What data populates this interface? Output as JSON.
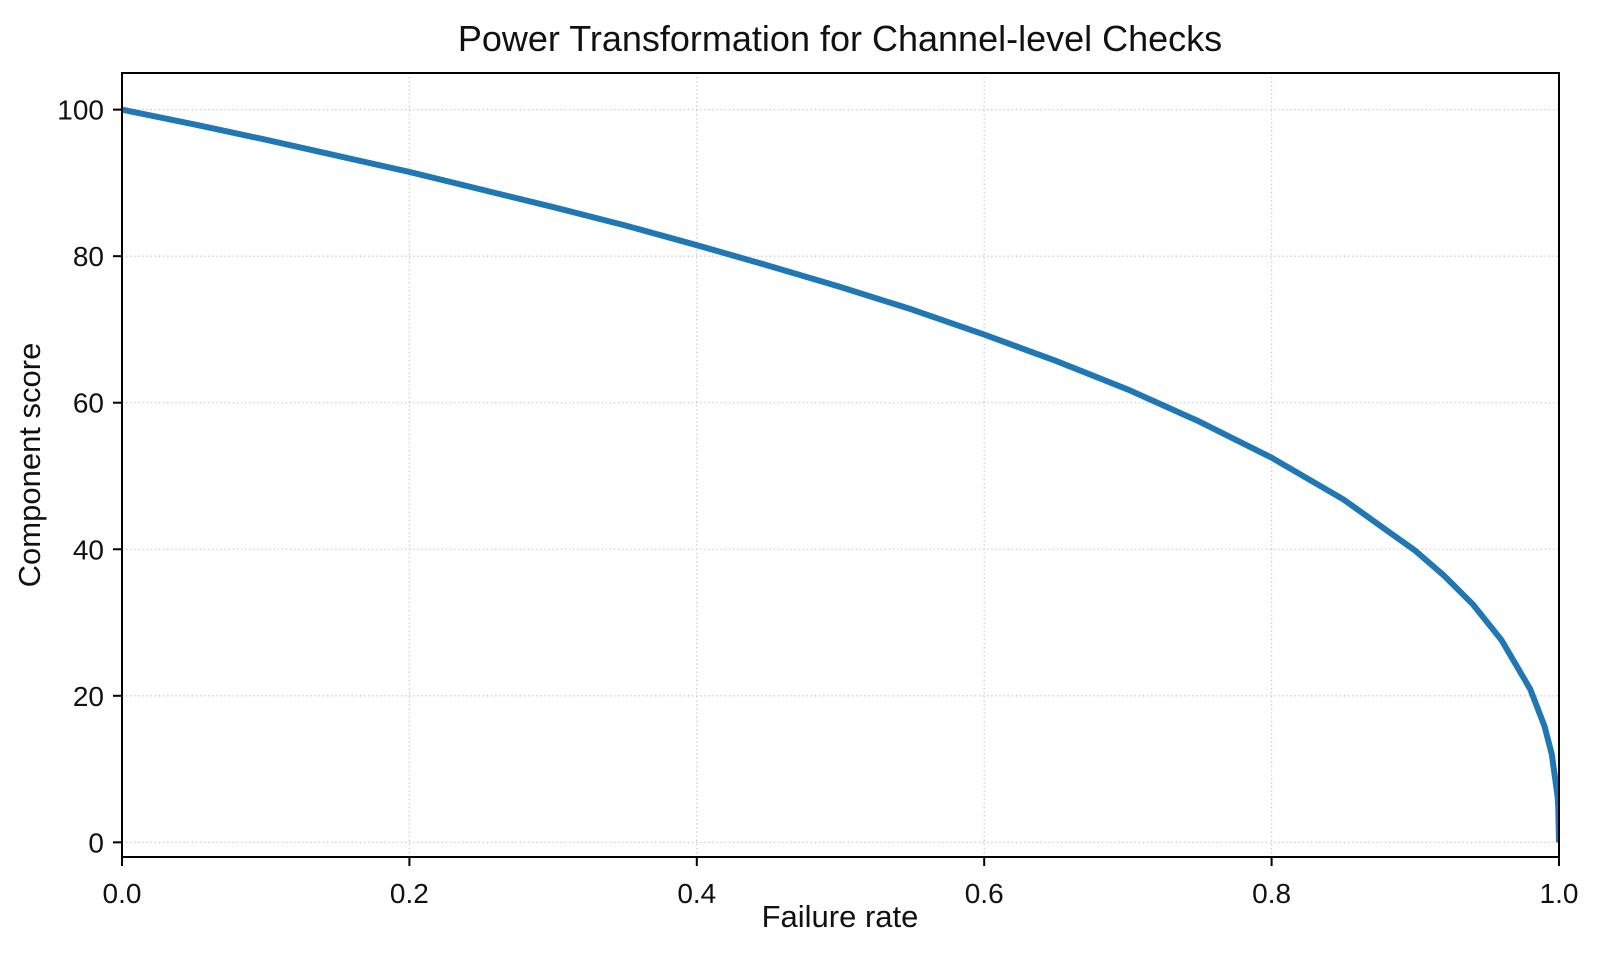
{
  "chart_data": {
    "type": "line",
    "title": "Power Transformation for Channel-level Checks",
    "xlabel": "Failure rate",
    "ylabel": "Component score",
    "xlim": [
      0.0,
      1.0
    ],
    "ylim": [
      -2,
      105
    ],
    "x_tick_values": [
      0.0,
      0.2,
      0.4,
      0.6,
      0.8,
      1.0
    ],
    "x_tick_labels": [
      "0.0",
      "0.2",
      "0.4",
      "0.6",
      "0.8",
      "1.0"
    ],
    "y_tick_values": [
      0,
      20,
      40,
      60,
      80,
      100
    ],
    "y_tick_labels": [
      "0",
      "20",
      "40",
      "60",
      "80",
      "100"
    ],
    "grid": true,
    "grid_style": "dotted",
    "legend": "none",
    "formula": "score = 100 * (1 - failure_rate)^0.4",
    "power": 0.4,
    "colors": {
      "line": "#1f77b4",
      "spine": "#000000",
      "grid": "#c9c9c9",
      "text": "#111111",
      "background": "#ffffff"
    },
    "line_width": 6,
    "series": [
      {
        "name": "Component score",
        "x": [
          0.0,
          0.05,
          0.1,
          0.15,
          0.2,
          0.25,
          0.3,
          0.35,
          0.4,
          0.45,
          0.5,
          0.55,
          0.6,
          0.65,
          0.7,
          0.75,
          0.8,
          0.85,
          0.9,
          0.92,
          0.94,
          0.96,
          0.98,
          0.99,
          0.995,
          0.999,
          0.9995,
          1.0
        ],
        "y": [
          100.0,
          98.0,
          95.9,
          93.7,
          91.5,
          89.1,
          86.7,
          84.2,
          81.5,
          78.7,
          75.8,
          72.7,
          69.3,
          65.7,
          61.8,
          57.4,
          52.5,
          46.8,
          39.8,
          36.4,
          32.5,
          27.6,
          20.9,
          15.8,
          12.0,
          6.3,
          4.8,
          0.0
        ]
      }
    ]
  }
}
